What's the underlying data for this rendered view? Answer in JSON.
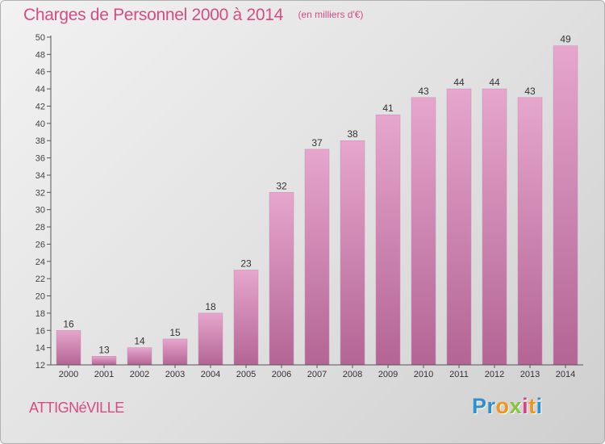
{
  "header": {
    "title": "Charges de Personnel 2000 à 2014",
    "subtitle": "(en milliers d'€)"
  },
  "commune": "ATTIGNéVILLE",
  "logo": {
    "letters": [
      "P",
      "r",
      "o",
      "x",
      "i",
      "t",
      "i"
    ]
  },
  "colors": {
    "bar_top": "#e6a6cd",
    "bar_bottom": "#b36594",
    "text_accent": "#d64c83",
    "background": "#e5e5e5",
    "logo": [
      "#2f8fd0",
      "#2f8fd0",
      "#f0941c",
      "#86c341",
      "#e23c8c",
      "#f0941c",
      "#2f8fd0"
    ]
  },
  "chart_data": {
    "type": "bar",
    "categories": [
      "2000",
      "2001",
      "2002",
      "2003",
      "2004",
      "2005",
      "2006",
      "2007",
      "2008",
      "2009",
      "2010",
      "2011",
      "2012",
      "2013",
      "2014"
    ],
    "values": [
      16,
      13,
      14,
      15,
      18,
      23,
      32,
      37,
      38,
      41,
      43,
      44,
      44,
      43,
      49
    ],
    "data_labels": [
      "16",
      "13",
      "14",
      "15",
      "18",
      "23",
      "32",
      "37",
      "38",
      "41",
      "43",
      "44",
      "44",
      "43",
      "49"
    ],
    "ylim": [
      12,
      50
    ],
    "yticks": [
      12,
      14,
      16,
      18,
      20,
      22,
      24,
      26,
      28,
      30,
      32,
      34,
      36,
      38,
      40,
      42,
      44,
      46,
      48,
      50
    ],
    "grid": false,
    "legend": "none"
  }
}
